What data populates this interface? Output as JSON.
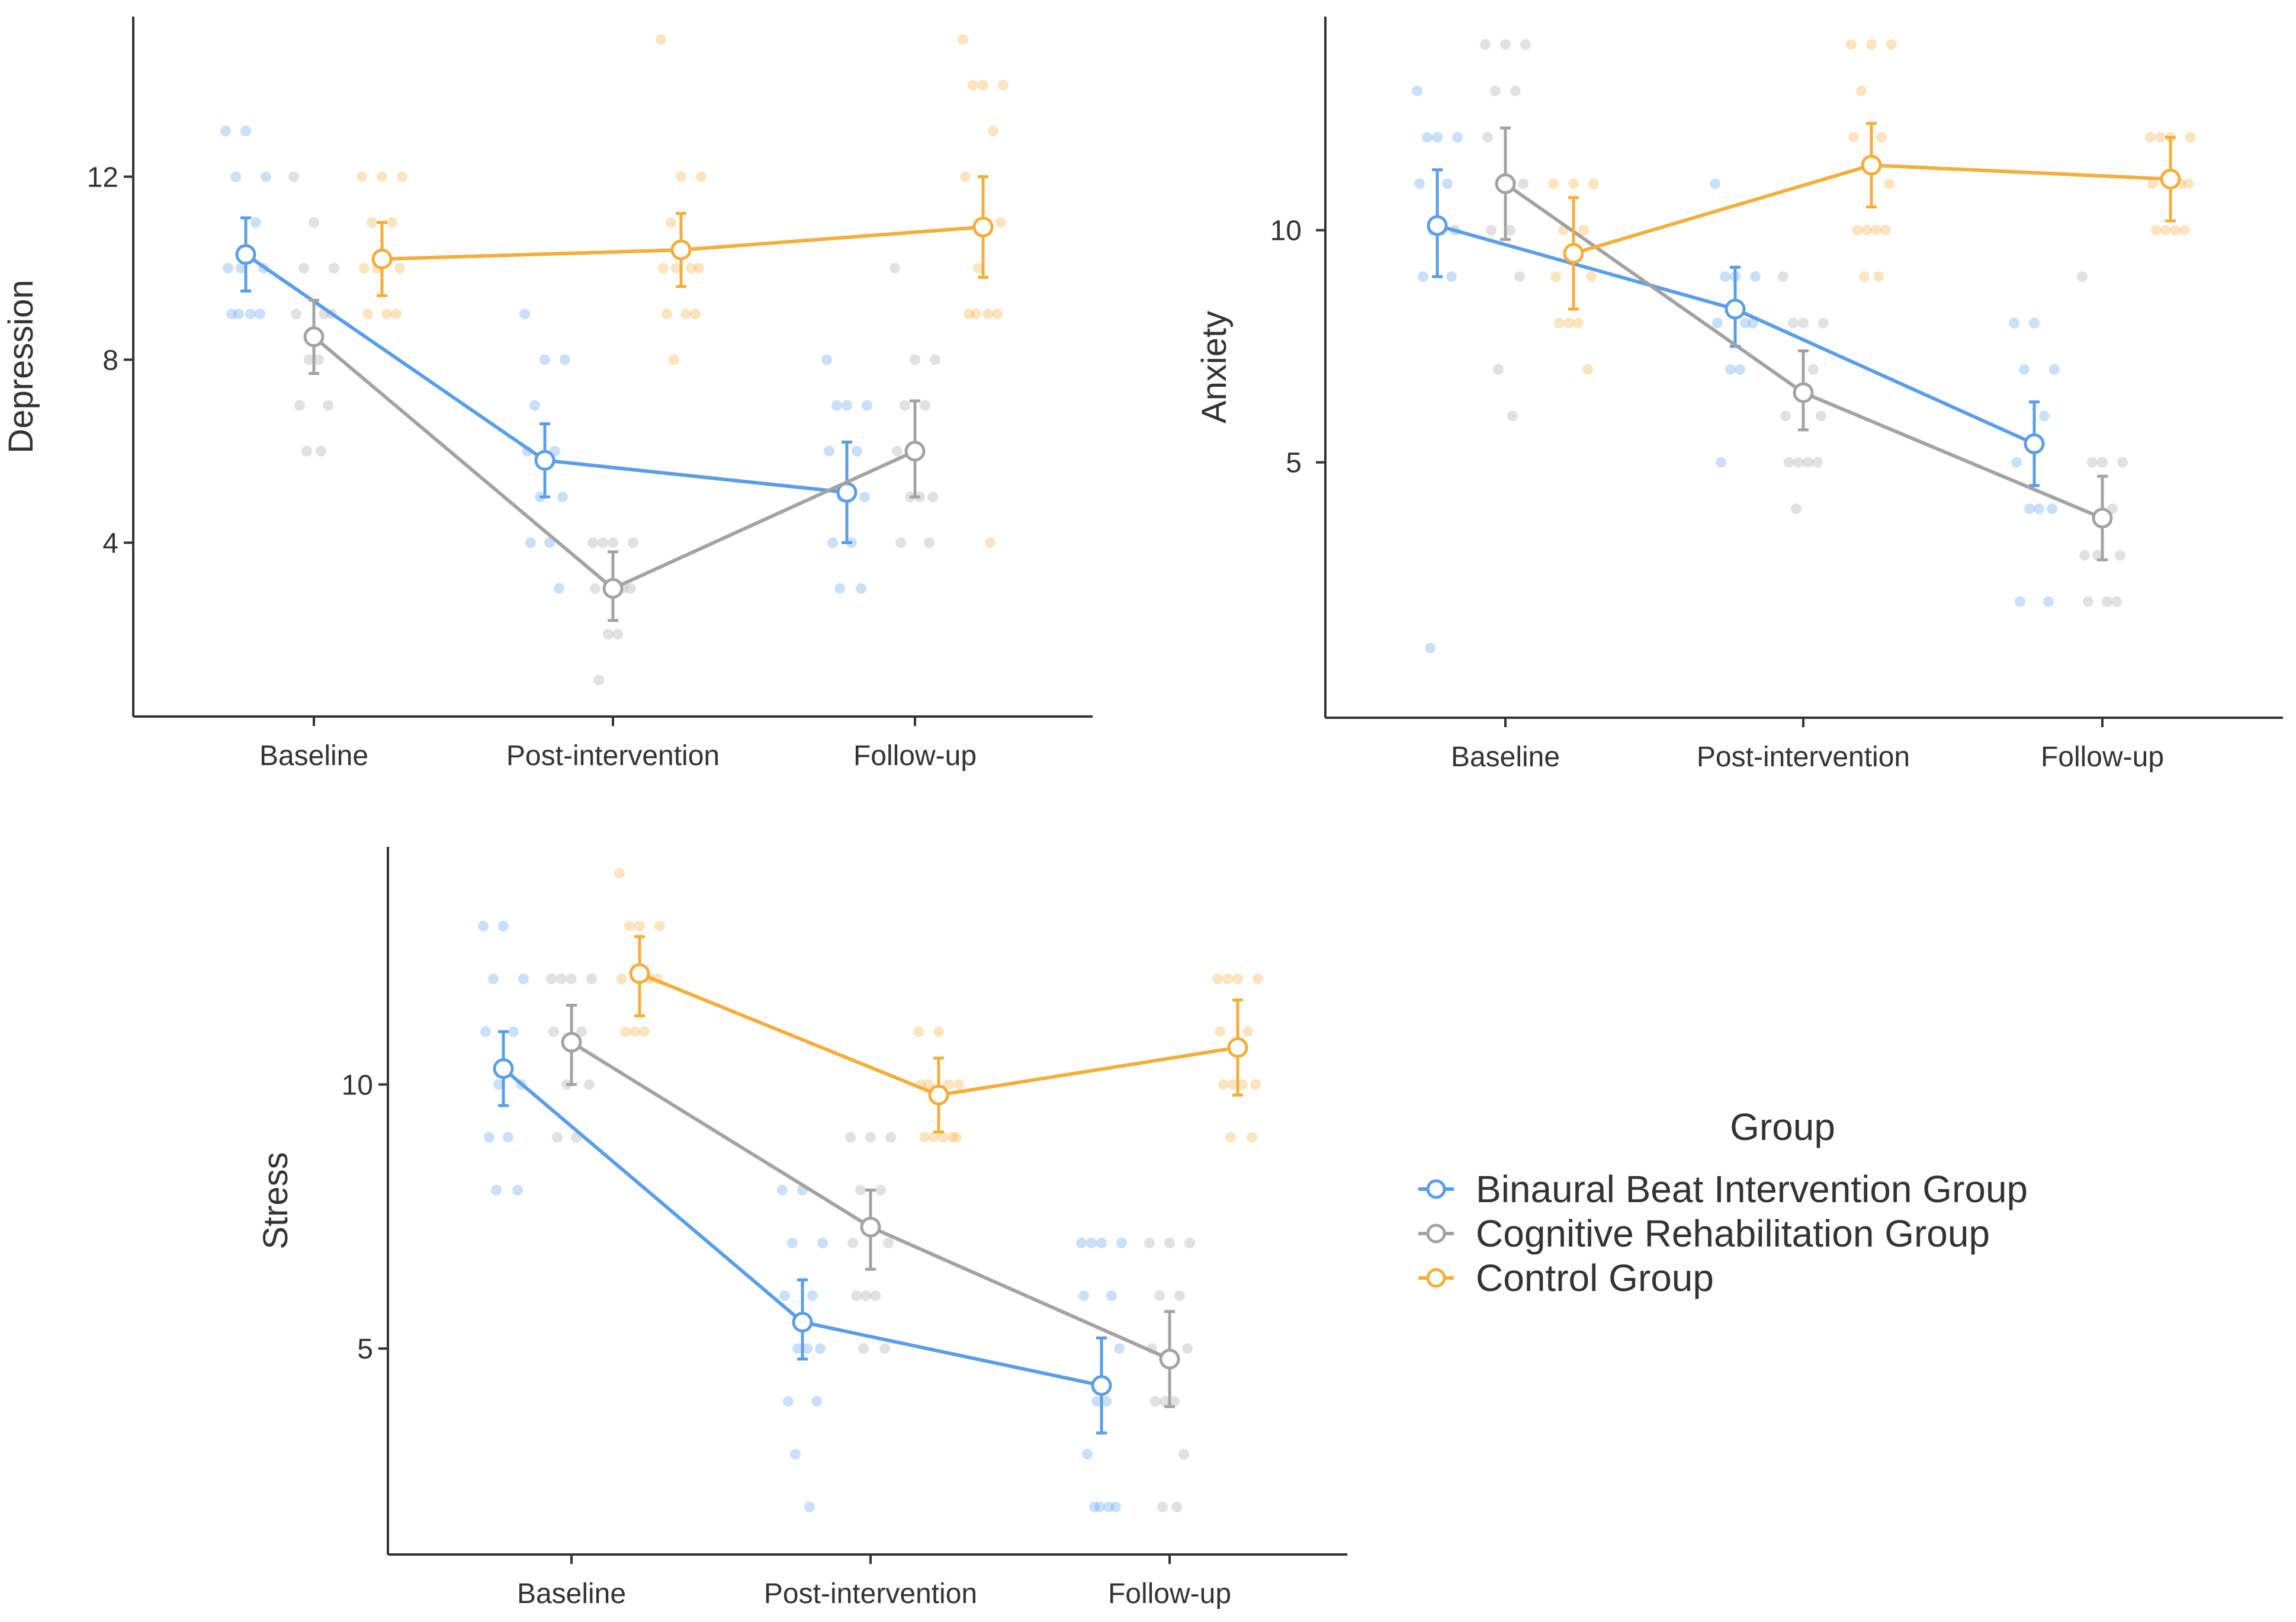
{
  "legend": {
    "title": "Group",
    "entries": [
      {
        "name": "Binaural Beat Intervention Group",
        "color": "#5b9ee8"
      },
      {
        "name": "Cognitive Rehabilitation Group",
        "color": "#a3a3a3"
      },
      {
        "name": "Control Group",
        "color": "#f3ae3b"
      }
    ]
  },
  "chart_data": [
    {
      "type": "line",
      "title": "",
      "xlabel": "",
      "ylabel": "Depression",
      "categories": [
        "Baseline",
        "Post-intervention",
        "Follow-up"
      ],
      "yticks": [
        4,
        8,
        12
      ],
      "ylim": [
        0.2,
        15.5
      ],
      "series": [
        {
          "name": "Binaural Beat Intervention Group",
          "values": [
            10.3,
            5.8,
            5.1
          ],
          "ci_low": [
            9.5,
            5.0,
            4.0
          ],
          "ci_high": [
            11.1,
            6.6,
            6.2
          ],
          "points": [
            [
              13,
              13,
              12,
              12,
              11,
              10,
              10,
              10,
              9,
              9,
              9,
              9
            ],
            [
              9,
              8,
              8,
              7,
              6,
              6,
              5,
              5,
              4,
              4,
              3
            ],
            [
              8,
              7,
              7,
              7,
              6,
              6,
              5,
              5,
              4,
              4,
              3,
              3
            ]
          ]
        },
        {
          "name": "Cognitive Rehabilitation Group",
          "values": [
            8.5,
            3.0,
            6.0
          ],
          "ci_low": [
            7.7,
            2.3,
            5.0
          ],
          "ci_high": [
            9.3,
            3.8,
            7.1
          ],
          "points": [
            [
              12,
              11,
              10,
              10,
              9,
              9,
              9,
              8,
              8,
              7,
              7,
              6,
              6
            ],
            [
              4,
              4,
              4,
              4,
              3,
              3,
              3,
              2,
              2,
              1
            ],
            [
              10,
              8,
              8,
              7,
              7,
              6,
              5,
              5,
              5,
              4,
              4
            ]
          ]
        },
        {
          "name": "Control Group",
          "values": [
            10.2,
            10.4,
            10.9
          ],
          "ci_low": [
            9.4,
            9.6,
            9.8
          ],
          "ci_high": [
            11.0,
            11.2,
            12.0
          ],
          "points": [
            [
              12,
              12,
              12,
              11,
              11,
              10,
              10,
              10,
              9,
              9,
              9
            ],
            [
              15,
              12,
              12,
              11,
              10,
              10,
              10,
              10,
              9,
              9,
              9,
              8
            ],
            [
              15,
              14,
              14,
              14,
              13,
              12,
              11,
              10,
              9,
              9,
              9,
              9,
              4
            ]
          ]
        }
      ]
    },
    {
      "type": "line",
      "title": "",
      "xlabel": "",
      "ylabel": "Anxiety",
      "categories": [
        "Baseline",
        "Post-intervention",
        "Follow-up"
      ],
      "yticks": [
        5,
        10
      ],
      "ylim": [
        -0.5,
        14.6
      ],
      "series": [
        {
          "name": "Binaural Beat Intervention Group",
          "values": [
            10.1,
            8.3,
            5.4
          ],
          "ci_low": [
            9.0,
            7.5,
            4.5
          ],
          "ci_high": [
            11.3,
            9.2,
            6.3
          ],
          "points": [
            [
              13,
              12,
              12,
              12,
              11,
              11,
              10,
              10,
              10,
              9,
              9,
              1
            ],
            [
              11,
              9,
              9,
              9,
              8,
              8,
              8,
              7,
              7,
              5
            ],
            [
              8,
              8,
              7,
              7,
              6,
              5,
              4,
              4,
              4,
              2,
              2
            ]
          ]
        },
        {
          "name": "Cognitive Rehabilitation Group",
          "values": [
            11.0,
            6.5,
            3.8
          ],
          "ci_low": [
            9.8,
            5.7,
            2.9
          ],
          "ci_high": [
            12.2,
            7.4,
            4.7
          ],
          "points": [
            [
              14,
              14,
              14,
              13,
              13,
              12,
              11,
              11,
              10,
              10,
              9,
              7,
              6
            ],
            [
              9,
              8,
              8,
              8,
              7,
              6,
              6,
              5,
              5,
              5,
              5,
              4
            ],
            [
              9,
              5,
              5,
              5,
              4,
              3,
              3,
              3,
              2,
              2,
              2
            ]
          ]
        },
        {
          "name": "Control Group",
          "values": [
            9.5,
            11.4,
            11.1
          ],
          "ci_low": [
            8.3,
            10.5,
            10.2
          ],
          "ci_high": [
            10.7,
            12.3,
            12.0
          ],
          "points": [
            [
              11,
              11,
              11,
              10,
              10,
              9,
              9,
              8,
              8,
              8,
              7
            ],
            [
              14,
              14,
              14,
              13,
              12,
              12,
              11,
              10,
              10,
              10,
              10,
              9,
              9
            ],
            [
              12,
              12,
              12,
              12,
              11,
              11,
              11,
              10,
              10,
              10,
              10
            ]
          ]
        }
      ]
    },
    {
      "type": "line",
      "title": "",
      "xlabel": "",
      "ylabel": "Stress",
      "categories": [
        "Baseline",
        "Post-intervention",
        "Follow-up"
      ],
      "yticks": [
        5,
        10
      ],
      "ylim": [
        1.1,
        14.5
      ],
      "series": [
        {
          "name": "Binaural Beat Intervention Group",
          "values": [
            10.3,
            5.5,
            4.3
          ],
          "ci_low": [
            9.6,
            4.8,
            3.4
          ],
          "ci_high": [
            11.0,
            6.3,
            5.2
          ],
          "points": [
            [
              13,
              13,
              12,
              12,
              11,
              11,
              10,
              10,
              9,
              9,
              8,
              8
            ],
            [
              8,
              8,
              7,
              7,
              6,
              6,
              5,
              5,
              5,
              4,
              4,
              3,
              2
            ],
            [
              7,
              7,
              7,
              7,
              6,
              6,
              5,
              4,
              4,
              3,
              2,
              2,
              2,
              2
            ]
          ]
        },
        {
          "name": "Cognitive Rehabilitation Group",
          "values": [
            10.8,
            7.3,
            4.8
          ],
          "ci_low": [
            10.0,
            6.5,
            3.9
          ],
          "ci_high": [
            11.5,
            8.0,
            5.7
          ],
          "points": [
            [
              12,
              12,
              12,
              12,
              11,
              11,
              10,
              10,
              9,
              9
            ],
            [
              9,
              9,
              9,
              8,
              8,
              7,
              7,
              6,
              6,
              6,
              5,
              5
            ],
            [
              7,
              7,
              7,
              6,
              6,
              5,
              5,
              4,
              4,
              4,
              3,
              2,
              2
            ]
          ]
        },
        {
          "name": "Control Group",
          "values": [
            12.1,
            9.8,
            10.7
          ],
          "ci_low": [
            11.3,
            9.1,
            9.8
          ],
          "ci_high": [
            12.8,
            10.5,
            11.6
          ],
          "points": [
            [
              14,
              13,
              13,
              13,
              12,
              12,
              12,
              11,
              11,
              11
            ],
            [
              11,
              11,
              10,
              10,
              10,
              10,
              9,
              9,
              9,
              9,
              9
            ],
            [
              12,
              12,
              12,
              12,
              11,
              11,
              10,
              10,
              10,
              10,
              9,
              9
            ]
          ]
        }
      ]
    }
  ]
}
